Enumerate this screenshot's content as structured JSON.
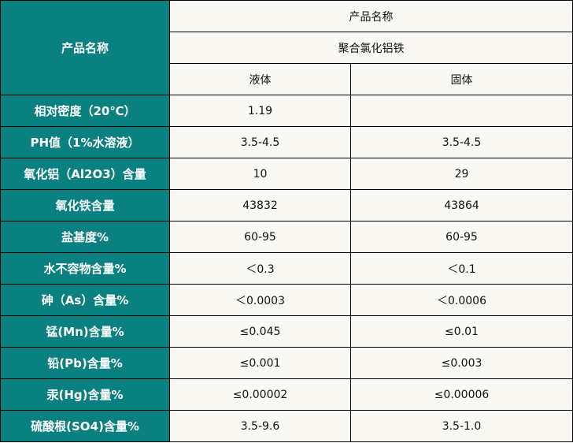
{
  "header": {
    "left_label": "产品名称",
    "top_label": "产品名称",
    "product": "聚合氯化铝铁",
    "col_liquid": "液体",
    "col_solid": "固体"
  },
  "rows": [
    {
      "label": "相对密度（20℃）",
      "liquid": "1.19",
      "solid": ""
    },
    {
      "label": "PH值（1%水溶液）",
      "liquid": "3.5-4.5",
      "solid": "3.5-4.5"
    },
    {
      "label": "氧化铝（Al2O3）含量",
      "liquid": "10",
      "solid": "29"
    },
    {
      "label": "氧化铁含量",
      "liquid": "43832",
      "solid": "43864"
    },
    {
      "label": "盐基度%",
      "liquid": "60-95",
      "solid": "60-95"
    },
    {
      "label": "水不容物含量%",
      "liquid": "＜0.3",
      "solid": "＜0.1"
    },
    {
      "label": "砷（As）含量%",
      "liquid": "＜0.0003",
      "solid": "＜0.0006"
    },
    {
      "label": "锰(Mn)含量%",
      "liquid": "≤0.045",
      "solid": "≤0.01"
    },
    {
      "label": "铅(Pb)含量%",
      "liquid": "≤0.001",
      "solid": "≤0.003"
    },
    {
      "label": "汞(Hg)含量%",
      "liquid": "≤0.00002",
      "solid": "≤0.00006"
    },
    {
      "label": "硫酸根(SO4)含量%",
      "liquid": "3.5-9.6",
      "solid": "3.5-1.0"
    }
  ],
  "colors": {
    "label_bg": "#0b8080",
    "cell_bg": "#f9f8f3",
    "border": "#000000"
  }
}
